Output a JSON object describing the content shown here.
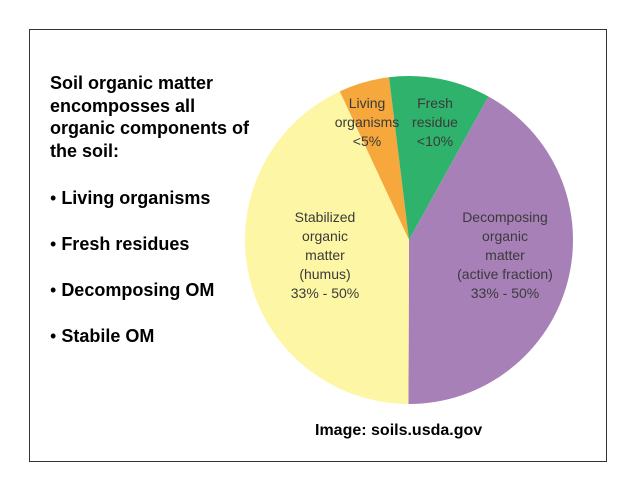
{
  "heading": "Soil organic matter encomposses all organic components of the soil:",
  "bullets": [
    "Living organisms",
    "Fresh residues",
    "Decomposing OM",
    "Stabile OM"
  ],
  "caption": "Image:  soils.usda.gov",
  "chart_data": {
    "type": "pie",
    "categories": [
      [
        "Living",
        "organisms"
      ],
      [
        "Fresh",
        "residue"
      ],
      [
        "Decomposing",
        "organic",
        "matter",
        "(active fraction)"
      ],
      [
        "Stabilized",
        "organic",
        "matter",
        "(humus)"
      ]
    ],
    "values": [
      5,
      10,
      42,
      43
    ],
    "value_labels": [
      "<5%",
      "<10%",
      "33% - 50%",
      "33% - 50%"
    ],
    "colors": [
      "#f6a83c",
      "#2fb36c",
      "#a880b8",
      "#fdf6a4"
    ]
  }
}
